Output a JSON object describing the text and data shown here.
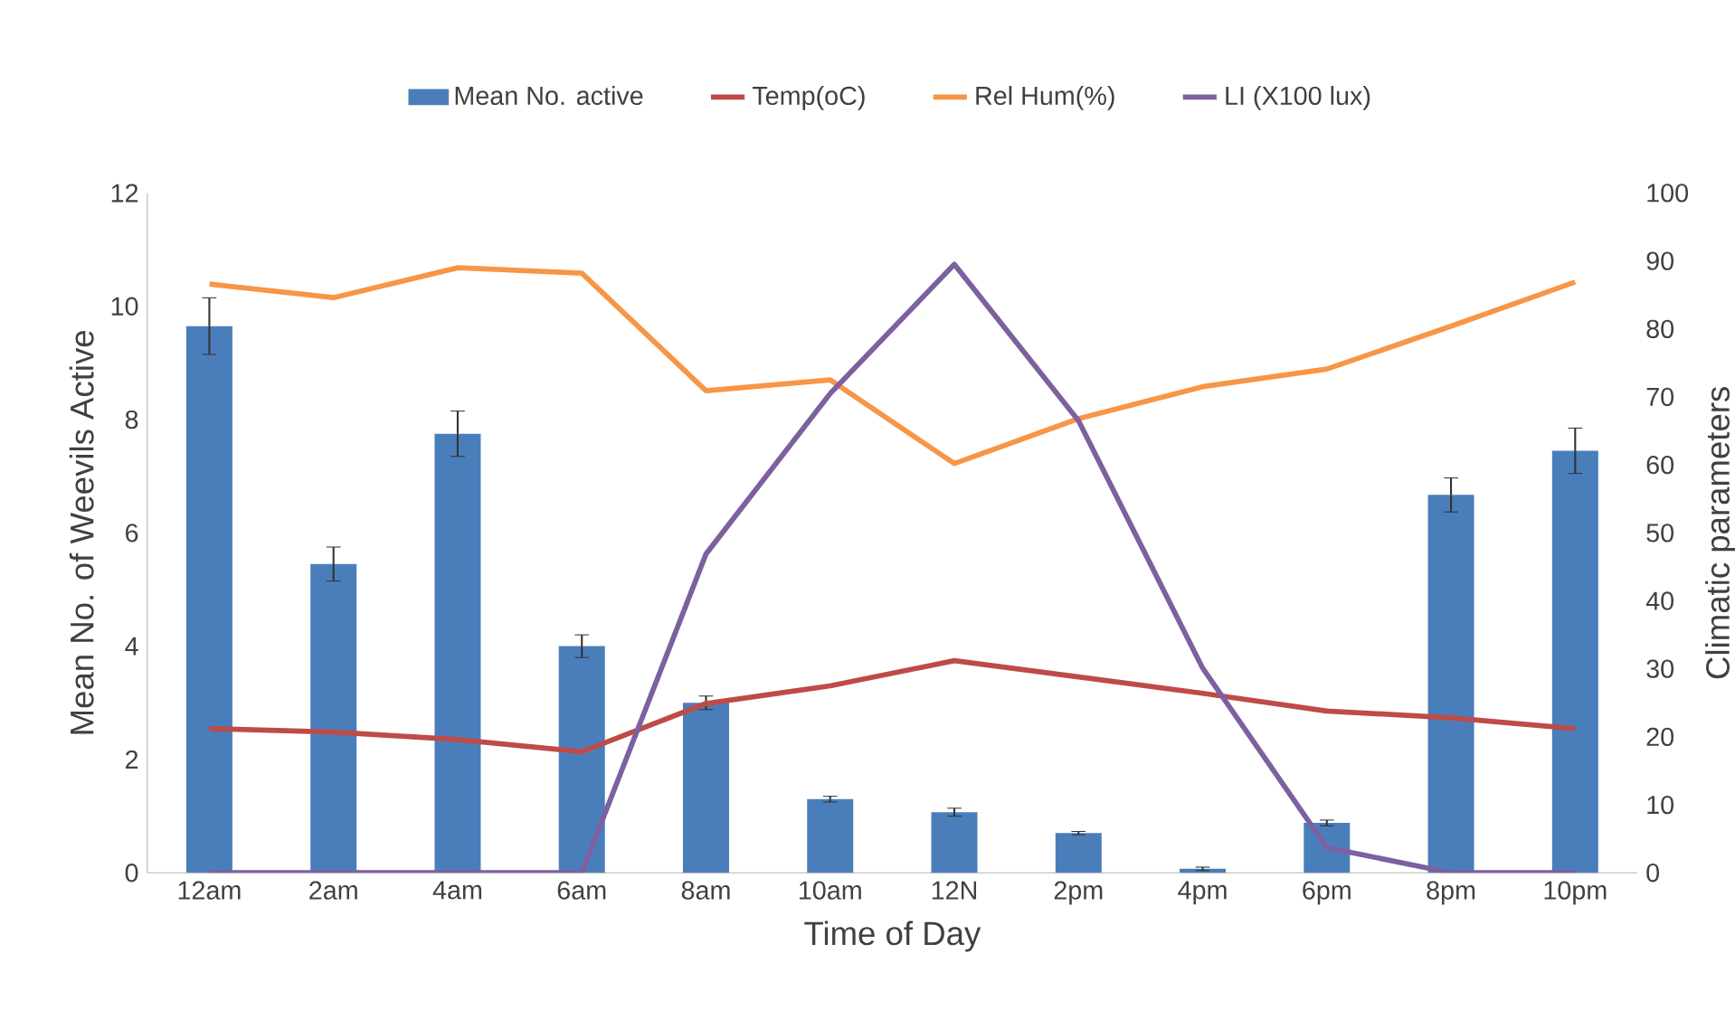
{
  "chart_data": {
    "type": "bar",
    "xlabel": "Time of Day",
    "ylabel": "Mean No. of Weevils Active",
    "y2label": "Climatic parameters",
    "categories": [
      "12am",
      "2am",
      "4am",
      "6am",
      "8am",
      "10am",
      "12N",
      "2pm",
      "4pm",
      "6pm",
      "8pm",
      "10pm"
    ],
    "series": [
      {
        "name": "Mean No. active",
        "color": "#4a7ebb",
        "values": [
          9.65,
          5.45,
          7.75,
          4.0,
          3.0,
          1.3,
          1.07,
          0.7,
          0.07,
          0.88,
          6.67,
          7.45
        ],
        "errors": [
          0.5,
          0.3,
          0.4,
          0.2,
          0.12,
          0.05,
          0.07,
          0.03,
          0.03,
          0.05,
          0.3,
          0.4
        ]
      },
      {
        "name": "Temp(oC)",
        "type": "line",
        "axis": "y2",
        "color": "#be4b48",
        "values": [
          21.2,
          20.7,
          19.6,
          17.8,
          24.9,
          27.5,
          31.2,
          28.8,
          26.4,
          23.8,
          22.8,
          21.2
        ]
      },
      {
        "name": "Rel Hum(%)",
        "type": "line",
        "axis": "y2",
        "color": "#f79646",
        "values": [
          86.6,
          84.6,
          89.0,
          88.2,
          70.9,
          72.5,
          60.2,
          66.8,
          71.5,
          74.1,
          80.4,
          86.9
        ]
      },
      {
        "name": "LI (X100 lux)",
        "type": "line",
        "axis": "y2",
        "color": "#7d60a0",
        "values": [
          0,
          0,
          0,
          0,
          46.9,
          70.5,
          89.5,
          66.5,
          30.1,
          3.7,
          0,
          0
        ]
      }
    ],
    "ylim": [
      0,
      12
    ],
    "yticks": [
      0,
      2,
      4,
      6,
      8,
      10,
      12
    ],
    "y2lim": [
      0,
      100
    ],
    "y2ticks": [
      0,
      10,
      20,
      30,
      40,
      50,
      60,
      70,
      80,
      90,
      100
    ],
    "legend": "top",
    "grid": false
  }
}
